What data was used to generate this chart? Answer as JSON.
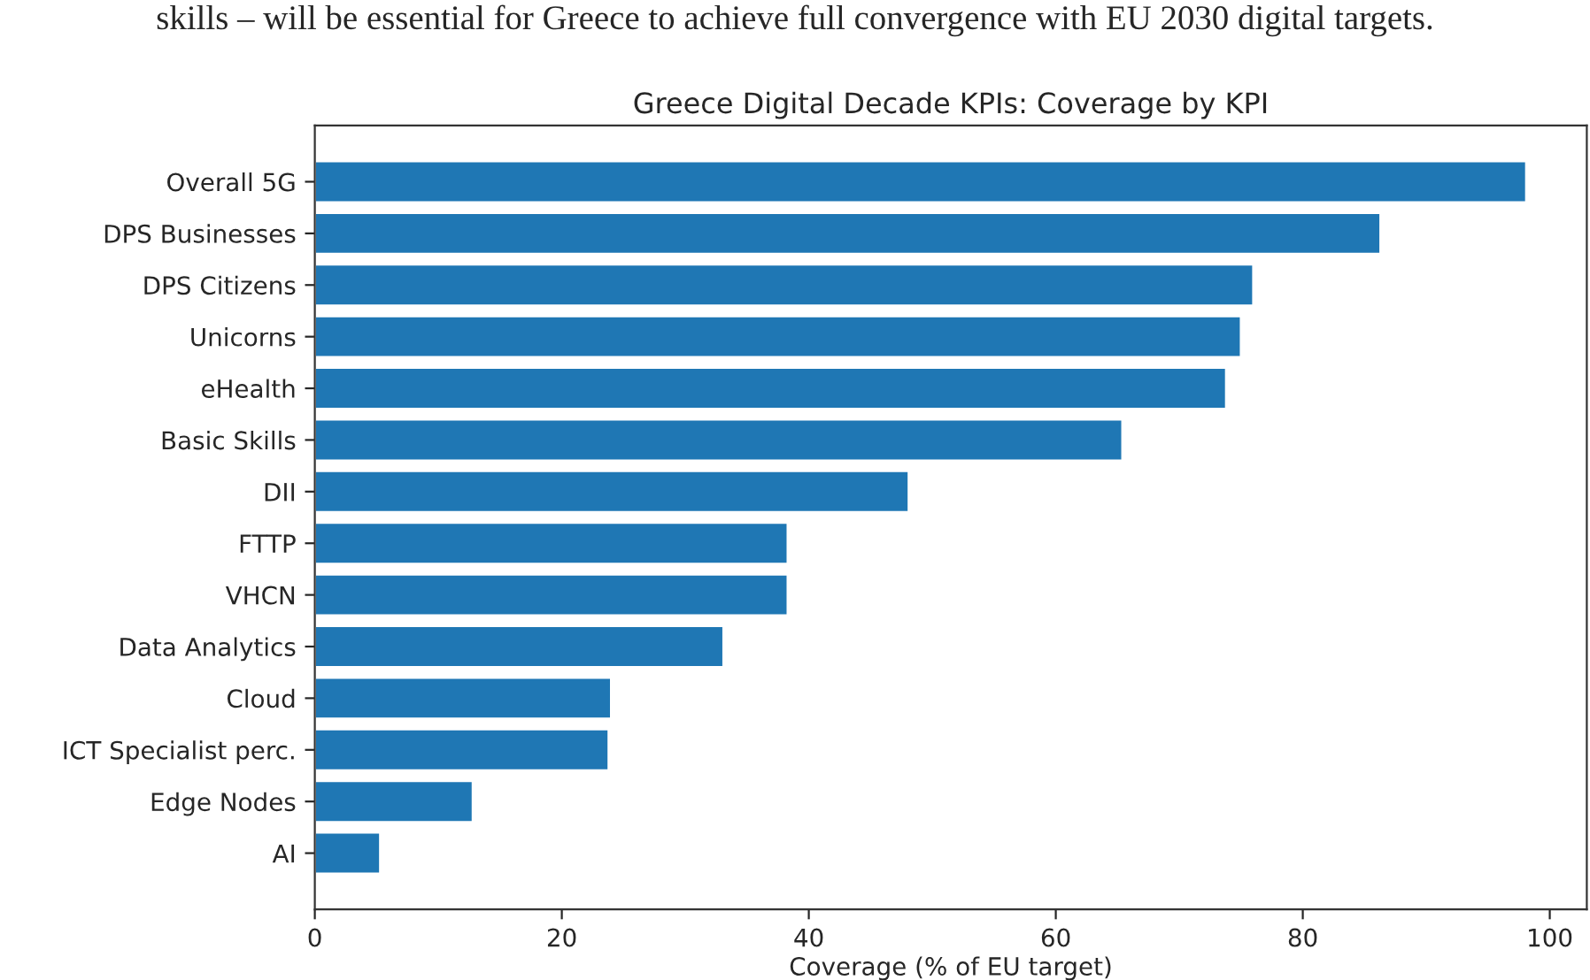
{
  "chart_data": {
    "type": "bar",
    "orientation": "horizontal",
    "title": "Greece Digital Decade KPIs: Coverage by KPI",
    "xlabel": "Coverage (% of EU target)",
    "annotations": [
      "skills – will be essential for Greece to achieve full convergence with EU 2030 digital targets."
    ],
    "categories": [
      "Overall 5G",
      "DPS Businesses",
      "DPS Citizens",
      "Unicorns",
      "eHealth",
      "Basic Skills",
      "DII",
      "FTTP",
      "VHCN",
      "Data Analytics",
      "Cloud",
      "ICT Specialist perc.",
      "Edge Nodes",
      "AI"
    ],
    "values": [
      98.1,
      86.3,
      76.0,
      75.0,
      73.8,
      65.4,
      48.1,
      38.3,
      38.3,
      33.1,
      24.0,
      23.8,
      12.8,
      5.3
    ],
    "color": "#1f77b4",
    "xlim": [
      0,
      103
    ],
    "xticks": [
      0,
      20,
      40,
      60,
      80,
      100
    ],
    "grid": false,
    "legend": false
  }
}
